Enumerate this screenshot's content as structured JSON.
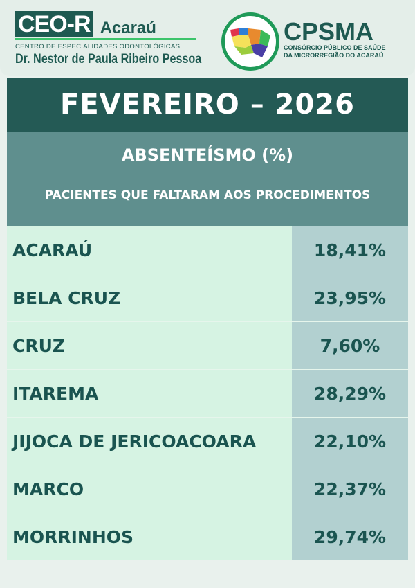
{
  "header": {
    "ceo": {
      "box": "CEO-R",
      "city": "Acaraú",
      "subtitle": "CENTRO DE ESPECIALIDADES ODONTOLÓGICAS",
      "doctor": "Dr. Nestor de Paula Ribeiro Pessoa"
    },
    "cpsma": {
      "name": "CPSMA",
      "line1": "CONSÓRCIO PÚBLICO DE SAÚDE",
      "line2": "DA MICRORREGIÃO DO ACARAÚ"
    }
  },
  "title": "FEVEREIRO – 2026",
  "subtitle": "ABSENTEÍSMO (%)",
  "description": "PACIENTES QUE FALTARAM AOS PROCEDIMENTOS",
  "rows": [
    {
      "name": "ACARAÚ",
      "value": "18,41%"
    },
    {
      "name": "BELA CRUZ",
      "value": "23,95%"
    },
    {
      "name": "CRUZ",
      "value": "7,60%"
    },
    {
      "name": "ITAREMA",
      "value": "28,29%"
    },
    {
      "name": "JIJOCA DE JERICOACOARA",
      "value": "22,10%"
    },
    {
      "name": "MARCO",
      "value": "22,37%"
    },
    {
      "name": "MORRINHOS",
      "value": "29,74%"
    }
  ]
}
